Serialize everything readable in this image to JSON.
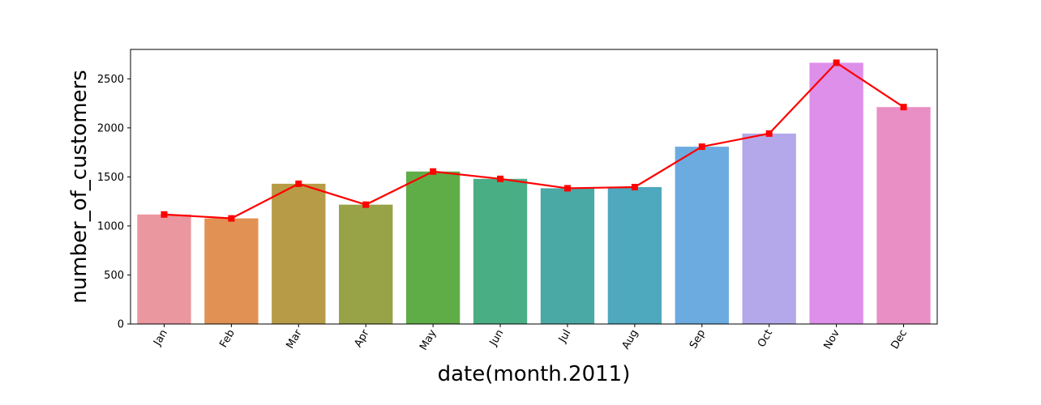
{
  "chart_data": {
    "type": "bar",
    "title": "",
    "xlabel": "date(month.2011)",
    "ylabel": "number_of_customers",
    "categories": [
      "Jan",
      "Feb",
      "Mar",
      "Apr",
      "May",
      "Jun",
      "Jul",
      "Aug",
      "Sep",
      "Oct",
      "Nov",
      "Dec"
    ],
    "values": [
      1117,
      1077,
      1430,
      1217,
      1555,
      1480,
      1384,
      1396,
      1808,
      1942,
      2664,
      2212
    ],
    "line_overlay": {
      "values": [
        1117,
        1077,
        1430,
        1217,
        1555,
        1480,
        1384,
        1396,
        1808,
        1942,
        2664,
        2212
      ],
      "color": "#ff0000",
      "marker": "square"
    },
    "bar_colors": [
      "#eb97a0",
      "#e19153",
      "#b89b47",
      "#97a346",
      "#5fad47",
      "#4aae85",
      "#4aa9a5",
      "#4ea8be",
      "#6cabe0",
      "#b5a8ea",
      "#dd8fe9",
      "#e98fc5"
    ],
    "yticks": [
      0,
      500,
      1000,
      1500,
      2000,
      2500
    ],
    "ylim": [
      0,
      2800
    ],
    "grid": false,
    "legend": "none",
    "xtick_rotation": 60
  }
}
